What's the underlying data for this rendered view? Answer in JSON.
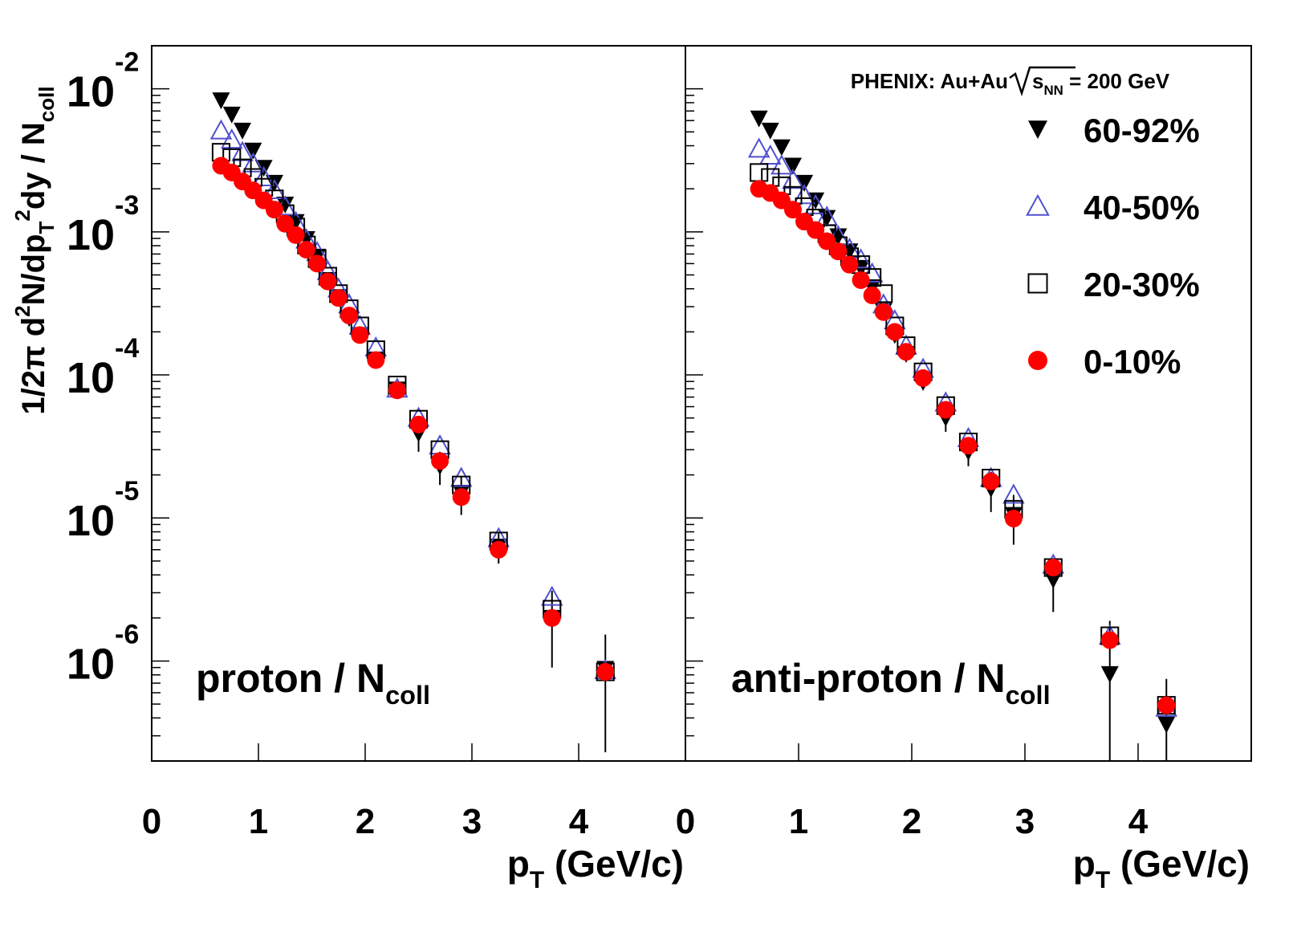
{
  "chart_data": [
    {
      "type": "scatter",
      "title": [
        "proton / N",
        "coll"
      ],
      "xlabel": [
        "p",
        "T",
        " (GeV/c)"
      ],
      "ylabel": [
        "1/2π d",
        "2",
        "N/dp",
        "T",
        "2",
        "dy / N",
        "coll"
      ],
      "xlim": [
        0,
        5
      ],
      "xticks": [
        0,
        1,
        2,
        3,
        4
      ],
      "ylim": [
        2e-07,
        0.02
      ],
      "log_y": true,
      "yticks": [
        {
          "value": 0.01,
          "label": "10",
          "exponent": "-2"
        },
        {
          "value": 0.001,
          "label": "10",
          "exponent": "-3"
        },
        {
          "value": 0.0001,
          "label": "10",
          "exponent": "-4"
        },
        {
          "value": 1e-05,
          "label": "10",
          "exponent": "-5"
        },
        {
          "value": 1e-06,
          "label": "10",
          "exponent": "-6"
        }
      ],
      "x": [
        0.65,
        0.75,
        0.85,
        0.95,
        1.05,
        1.15,
        1.25,
        1.35,
        1.45,
        1.55,
        1.65,
        1.75,
        1.85,
        1.95,
        2.1,
        2.3,
        2.5,
        2.7,
        2.9,
        3.25,
        3.75,
        4.25
      ],
      "series": [
        {
          "color": "#000000",
          "marker": "triangle-down",
          "values": [
            0.0083,
            0.0066,
            0.0051,
            0.0037,
            0.0028,
            0.0022,
            0.00155,
            0.00117,
            0.00089,
            0.00067,
            0.00046,
            0.00035,
            0.00025,
            0.00019,
            0.000128,
            7.9e-05,
            3.9e-05,
            2.3e-05,
            1.5e-05,
            6.3e-06,
            2e-06,
            8.8e-07
          ],
          "errors": [
            null,
            null,
            null,
            null,
            null,
            null,
            null,
            null,
            null,
            null,
            null,
            null,
            null,
            null,
            null,
            null,
            1e-05,
            6e-06,
            4.5e-06,
            1.5e-06,
            1.1e-06,
            6.5e-07
          ]
        },
        {
          "color": "#5050d0",
          "marker": "triangle-up-open",
          "values": [
            0.0051,
            0.0044,
            0.0036,
            0.003,
            0.0024,
            0.00195,
            0.0015,
            0.00117,
            0.00088,
            0.00072,
            0.00053,
            0.0004,
            0.00031,
            0.00022,
            0.000155,
            8e-05,
            5e-05,
            3.2e-05,
            1.9e-05,
            7.2e-06,
            2.8e-06,
            8.6e-07
          ]
        },
        {
          "color": "#000000",
          "marker": "square-open",
          "values": [
            0.0036,
            0.0033,
            0.0028,
            0.0024,
            0.00205,
            0.0017,
            0.00134,
            0.00108,
            0.00081,
            0.00065,
            0.00049,
            0.00037,
            0.00029,
            0.00022,
            0.00015,
            8.5e-05,
            4.9e-05,
            3e-05,
            1.7e-05,
            6.9e-06,
            2.3e-06,
            8.4e-07
          ]
        },
        {
          "color": "#ff0000",
          "marker": "circle",
          "values": [
            0.0029,
            0.0026,
            0.00225,
            0.00195,
            0.00166,
            0.00143,
            0.00114,
            0.00095,
            0.00075,
            0.0006,
            0.00045,
            0.000345,
            0.00026,
            0.00019,
            0.000127,
            7.8e-05,
            4.5e-05,
            2.5e-05,
            1.4e-05,
            6e-06,
            2e-06,
            8.4e-07
          ]
        }
      ]
    },
    {
      "type": "scatter",
      "title": [
        "anti-proton / N",
        "coll"
      ],
      "header": [
        "PHENIX: Au+Au",
        "s",
        "NN",
        " = 200 GeV"
      ],
      "xlabel": [
        "p",
        "T",
        " (GeV/c)"
      ],
      "xlim": [
        0,
        5
      ],
      "xticks": [
        0,
        1,
        2,
        3,
        4
      ],
      "ylim": [
        2e-07,
        0.02
      ],
      "log_y": true,
      "yticks": [
        {
          "value": 0.01
        },
        {
          "value": 0.001
        },
        {
          "value": 0.0001
        },
        {
          "value": 1e-05
        },
        {
          "value": 1e-06
        }
      ],
      "legend": "upper right",
      "x": [
        0.65,
        0.75,
        0.85,
        0.95,
        1.05,
        1.15,
        1.25,
        1.35,
        1.45,
        1.55,
        1.65,
        1.75,
        1.85,
        1.95,
        2.1,
        2.3,
        2.5,
        2.7,
        2.9,
        3.25,
        3.75,
        4.25
      ],
      "series": [
        {
          "name": "60-92%",
          "color": "#000000",
          "marker": "triangle-down",
          "values": [
            0.0062,
            0.0051,
            0.0039,
            0.0029,
            0.0022,
            0.00166,
            0.00125,
            0.00093,
            0.00073,
            0.00056,
            0.00041,
            0.00028,
            0.00019,
            0.00014,
            8.9e-05,
            5e-05,
            2.9e-05,
            1.6e-05,
            1.05e-05,
            3.7e-06,
            8.1e-07,
            3.6e-07
          ],
          "errors": [
            null,
            null,
            null,
            null,
            null,
            null,
            null,
            null,
            null,
            null,
            null,
            null,
            null,
            null,
            null,
            1e-05,
            6e-06,
            5e-06,
            4e-06,
            1.5e-06,
            1.1e-06,
            3.9e-07
          ]
        },
        {
          "name": "40-50%",
          "color": "#5050d0",
          "marker": "triangle-up-open",
          "values": [
            0.0038,
            0.0034,
            0.0029,
            0.0023,
            0.0018,
            0.00153,
            0.00127,
            0.00093,
            0.00076,
            0.00064,
            0.00051,
            0.00031,
            0.00024,
            0.00016,
            0.00011,
            6.4e-05,
            3.6e-05,
            1.9e-05,
            1.45e-05,
            4.7e-06,
            1.5e-06,
            4.7e-07
          ]
        },
        {
          "name": "20-30%",
          "color": "#000000",
          "marker": "square-open",
          "values": [
            0.0026,
            0.0024,
            0.0021,
            0.0018,
            0.0015,
            0.00125,
            0.00097,
            0.0008,
            0.00067,
            0.00059,
            0.00048,
            0.00037,
            0.00022,
            0.00016,
            0.000105,
            6.1e-05,
            3.4e-05,
            1.9e-05,
            1.15e-05,
            4.5e-06,
            1.5e-06,
            4.9e-07
          ]
        },
        {
          "name": "0-10%",
          "color": "#ff0000",
          "marker": "circle",
          "values": [
            0.002,
            0.00187,
            0.00166,
            0.00143,
            0.00118,
            0.00103,
            0.00086,
            0.00073,
            0.00059,
            0.00046,
            0.00036,
            0.000275,
            0.0002,
            0.000145,
            9.5e-05,
            5.7e-05,
            3.2e-05,
            1.8e-05,
            9.9e-06,
            4.5e-06,
            1.4e-06,
            4.9e-07
          ]
        }
      ]
    }
  ]
}
